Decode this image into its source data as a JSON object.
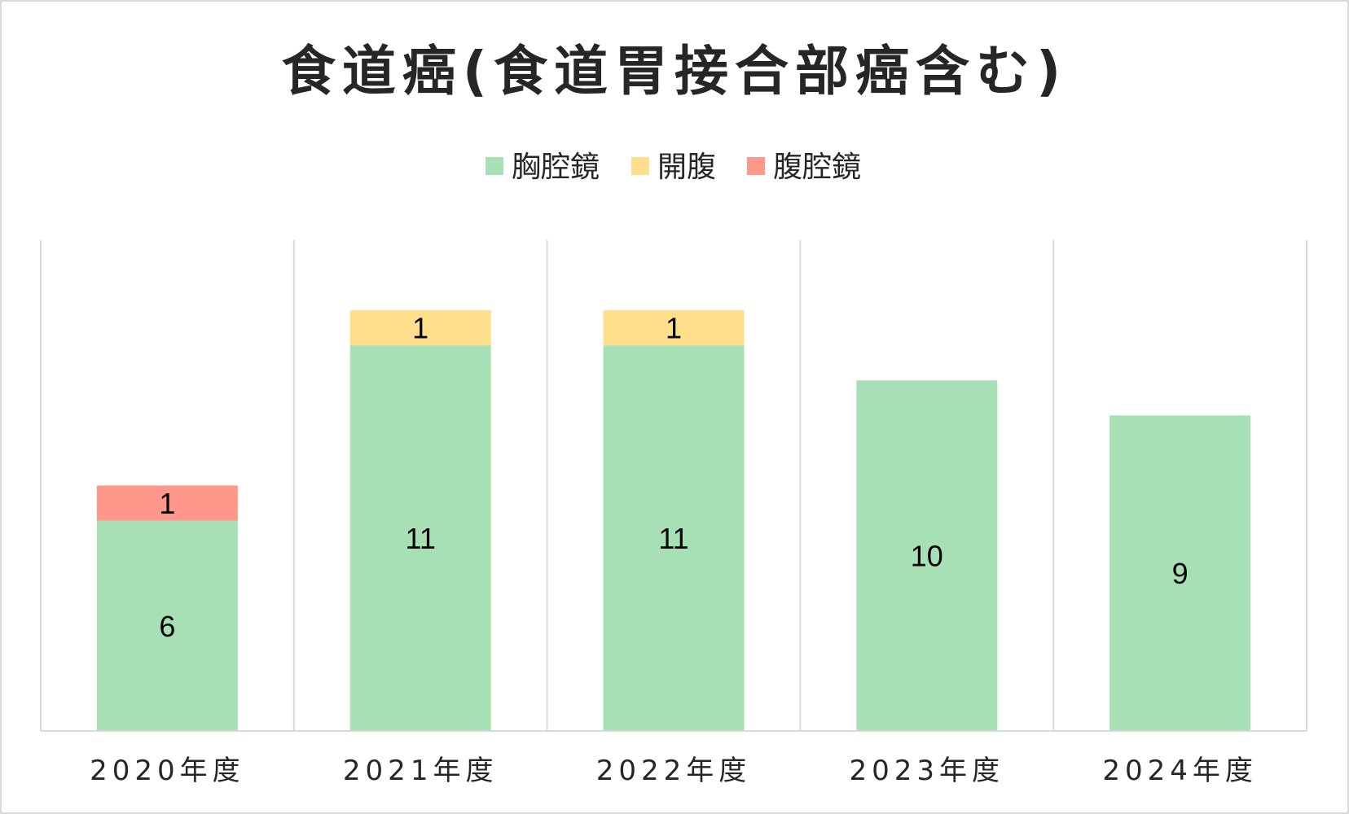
{
  "chart_data": {
    "type": "bar",
    "stacked": true,
    "title": "食道癌(食道胃接合部癌含む)",
    "categories": [
      "2020年度",
      "2021年度",
      "2022年度",
      "2023年度",
      "2024年度"
    ],
    "series": [
      {
        "name": "胸腔鏡",
        "color": "#a8e0b5",
        "values": [
          6,
          11,
          11,
          10,
          9
        ]
      },
      {
        "name": "開腹",
        "color": "#ffdf8c",
        "values": [
          0,
          1,
          1,
          0,
          0
        ]
      },
      {
        "name": "腹腔鏡",
        "color": "#ff978a",
        "values": [
          1,
          0,
          0,
          0,
          0
        ]
      }
    ],
    "ylim": [
      0,
      14
    ],
    "grid": "vertical separators",
    "legend_position": "top",
    "data_labels": true,
    "colors": {
      "text": "#262626",
      "grid": "#d9d9d9",
      "label": "#000000"
    }
  }
}
